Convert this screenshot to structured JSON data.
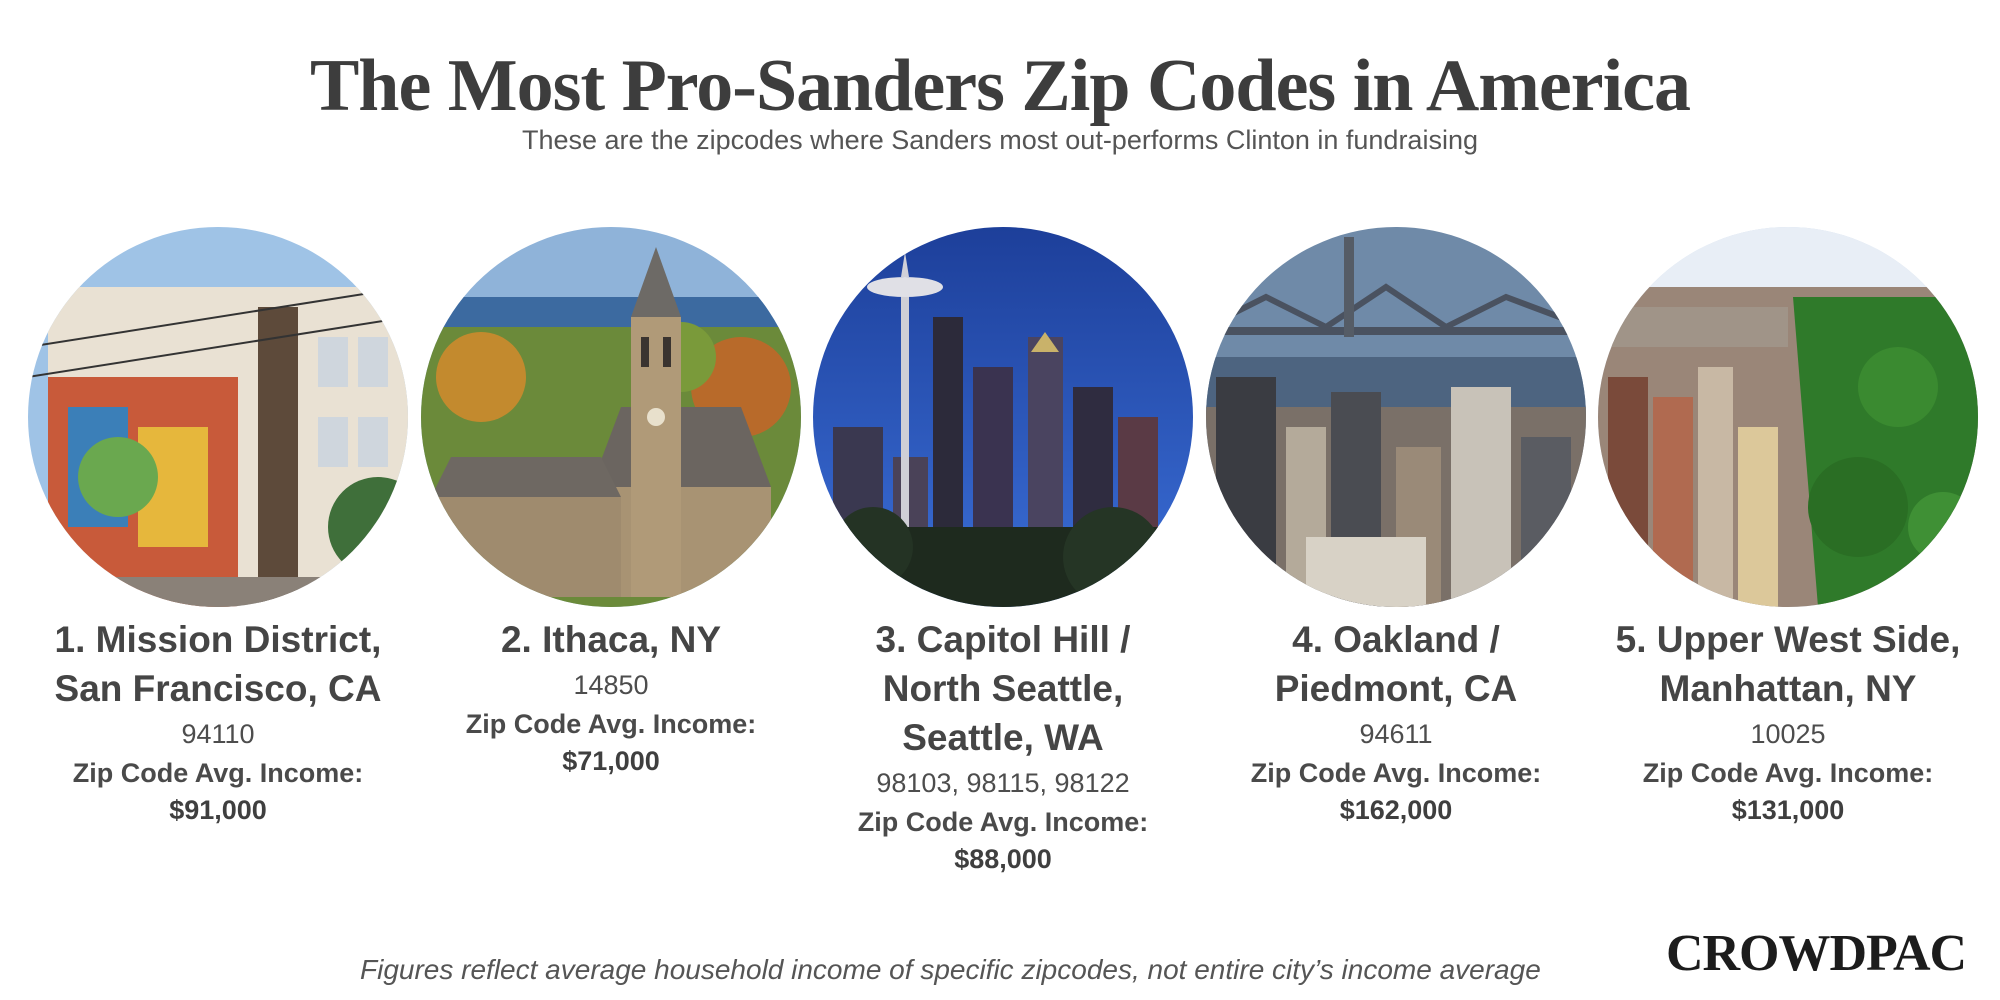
{
  "header": {
    "title": "The Most Pro-Sanders Zip Codes in America",
    "subtitle": "These are the zipcodes where Sanders most out-performs Clinton in fundraising"
  },
  "locations": [
    {
      "name_lines": [
        "1. Mission District,",
        "San Francisco, CA"
      ],
      "zips": "94110",
      "income_label": "Zip Code Avg. Income:",
      "income": "$91,000"
    },
    {
      "name_lines": [
        "2. Ithaca, NY"
      ],
      "zips": "14850",
      "income_label": "Zip Code Avg. Income:",
      "income": "$71,000"
    },
    {
      "name_lines": [
        "3. Capitol Hill /",
        "North Seattle,",
        "Seattle, WA"
      ],
      "zips": "98103, 98115, 98122",
      "income_label": "Zip Code Avg. Income:",
      "income": "$88,000"
    },
    {
      "name_lines": [
        "4. Oakland /",
        "Piedmont, CA"
      ],
      "zips": "94611",
      "income_label": "Zip Code Avg. Income:",
      "income": "$162,000"
    },
    {
      "name_lines": [
        "5. Upper West Side,",
        "Manhattan, NY"
      ],
      "zips": "10025",
      "income_label": "Zip Code Avg. Income:",
      "income": "$131,000"
    }
  ],
  "footer": {
    "note": "Figures reflect average household income of specific zipcodes, not entire city’s income average",
    "brand": "CROWDPAC"
  }
}
